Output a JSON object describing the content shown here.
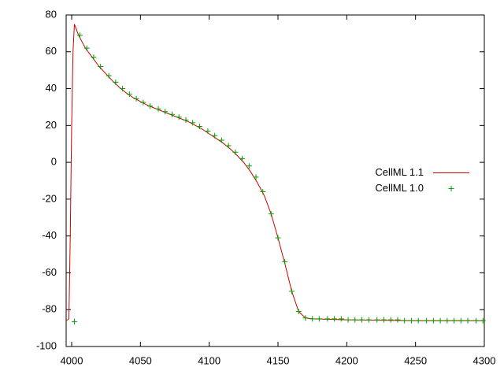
{
  "chart_data": {
    "type": "line",
    "xlim": [
      3996,
      4300
    ],
    "xticks": [
      4000,
      4050,
      4100,
      4150,
      4200,
      4250,
      4300
    ],
    "ylim": [
      -100,
      80
    ],
    "yticks": [
      -100,
      -80,
      -60,
      -40,
      -20,
      0,
      20,
      40,
      60,
      80
    ],
    "grid": false,
    "legend": "right",
    "series": [
      {
        "name": "CellML 1.1",
        "type": "line",
        "color": "#d00000",
        "x": [
          3996,
          3998,
          3999,
          4000,
          4001,
          4002,
          4005,
          4010,
          4015,
          4020,
          4025,
          4030,
          4035,
          4040,
          4045,
          4050,
          4055,
          4060,
          4065,
          4070,
          4075,
          4080,
          4085,
          4090,
          4095,
          4100,
          4105,
          4110,
          4115,
          4120,
          4125,
          4130,
          4135,
          4140,
          4145,
          4150,
          4155,
          4160,
          4165,
          4170,
          4175,
          4200,
          4250,
          4300
        ],
        "values": [
          -86,
          -85,
          -40,
          20,
          60,
          75,
          69,
          62,
          57,
          52,
          48,
          44,
          40.5,
          37.5,
          35,
          33,
          31,
          29.5,
          28,
          26.5,
          25,
          23.5,
          22,
          20,
          18,
          15.5,
          13,
          10.5,
          7.5,
          4,
          0,
          -5,
          -11,
          -18,
          -28,
          -41,
          -55,
          -70,
          -81,
          -84.5,
          -85,
          -85.5,
          -86,
          -86
        ]
      },
      {
        "name": "CellML 1.0",
        "type": "scatter",
        "color": "#00a000",
        "x": [
          4002,
          4006,
          4011,
          4016,
          4021,
          4027,
          4032,
          4037,
          4042,
          4047,
          4052,
          4057,
          4063,
          4068,
          4073,
          4078,
          4083,
          4088,
          4093,
          4099,
          4104,
          4109,
          4114,
          4119,
          4124,
          4129,
          4134,
          4139,
          4145,
          4150,
          4155,
          4160,
          4165,
          4170,
          4175,
          4180,
          4186,
          4191,
          4196,
          4201,
          4206,
          4211,
          4216,
          4222,
          4227,
          4232,
          4237,
          4242,
          4247,
          4252,
          4258,
          4263,
          4268,
          4273,
          4278,
          4283,
          4288,
          4294,
          4299
        ],
        "values": [
          -86.5,
          69,
          62,
          57,
          52,
          47,
          43.5,
          40,
          37,
          34.5,
          32.5,
          30.5,
          29,
          27.5,
          26,
          24.5,
          23,
          21.5,
          19.5,
          17,
          14.5,
          12,
          9,
          5.5,
          2,
          -2,
          -8,
          -16,
          -28,
          -41,
          -54,
          -70,
          -81,
          -84.5,
          -85,
          -85,
          -85,
          -85,
          -85,
          -85.5,
          -85.5,
          -85.5,
          -85.5,
          -85.5,
          -85.5,
          -85.5,
          -85.5,
          -86,
          -86,
          -86,
          -86,
          -86,
          -86,
          -86,
          -86,
          -86,
          -86,
          -86,
          -86
        ]
      }
    ]
  }
}
